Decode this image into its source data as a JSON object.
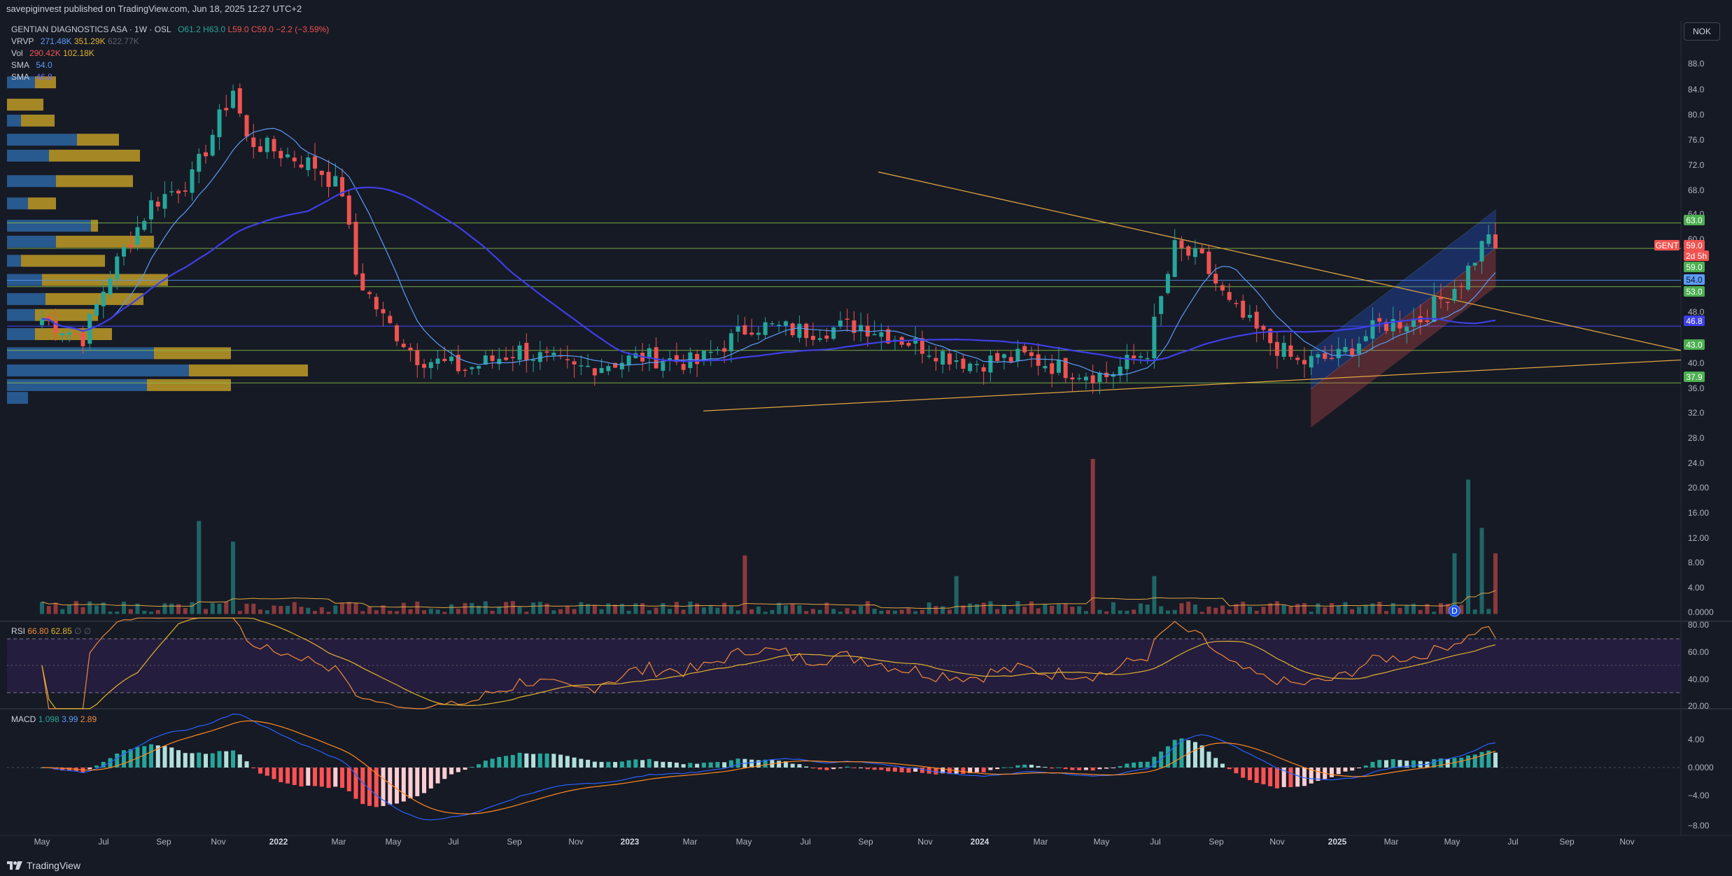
{
  "header": {
    "publish_line": "savepiginvest published on TradingView.com, Jun 18, 2025 12:27 UTC+2"
  },
  "footer": {
    "brand": "TradingView"
  },
  "currency_button": "NOK",
  "legend": {
    "symbol": "GENTIAN DIAGNOSTICS ASA · 1W · OSL",
    "open": "O61.2",
    "high": "H63.0",
    "low": "L59.0",
    "close": "C59.0",
    "change": "−2.2 (−3.59%)",
    "vrvp_label": "VRVP",
    "vrvp_up": "271.48K",
    "vrvp_down": "351.29K",
    "vrvp_total": "622.77K",
    "vol_label": "Vol",
    "vol_val": "290.42K",
    "vol_ma": "102.18K",
    "sma1_label": "SMA",
    "sma1_val": "54.0",
    "sma2_label": "SMA",
    "sma2_val": "46.8"
  },
  "rsi_legend": {
    "label": "RSI",
    "rsi": "66.80",
    "ma": "62.85",
    "extra1": "∅",
    "extra2": "∅"
  },
  "macd_legend": {
    "label": "MACD",
    "hist": "1.098",
    "macd": "3.99",
    "signal": "2.89"
  },
  "colors": {
    "bg": "#161a25",
    "up": "#26a69a",
    "down": "#ef5350",
    "sma_fast": "#5b9cf6",
    "sma_slow": "#3f3fe6",
    "trendline": "#e0a540",
    "level_green": "#8bc34a",
    "level_blue": "#5b9cf6",
    "rsi_line": "#ef8a3a",
    "rsi_ma": "#e0b22f",
    "macd_line": "#2962ff",
    "signal_line": "#ff8a1f",
    "vrvp_up": "#2f6fb3",
    "vrvp_down": "#c9a227"
  },
  "chart_data": {
    "type": "candlestick",
    "interval": "1W",
    "price_axis": {
      "ticks": [
        "88.0",
        "84.0",
        "80.0",
        "76.0",
        "72.0",
        "68.0",
        "64.0",
        "60.0",
        "48.0",
        "40.0",
        "36.0",
        "32.0",
        "28.0",
        "24.0",
        "20.00",
        "16.00",
        "12.00",
        "8.00",
        "4.00",
        "0.0000"
      ],
      "range": [
        0,
        92
      ]
    },
    "price_labels": [
      {
        "text": "63.0",
        "value": 63.0,
        "color": "#4caf50"
      },
      {
        "text": "GENT",
        "value": 59.0,
        "color": "#ef5350"
      },
      {
        "text": "59.0",
        "value": 59.0,
        "color": "#ef5350"
      },
      {
        "text": "2d 5h",
        "value": 59.0,
        "color": "#ef5350"
      },
      {
        "text": "59.0",
        "value": 59.0,
        "color": "#4caf50"
      },
      {
        "text": "54.0",
        "value": 54.0,
        "color": "#5b9cf6"
      },
      {
        "text": "53.0",
        "value": 53.0,
        "color": "#4caf50"
      },
      {
        "text": "46.8",
        "value": 46.8,
        "color": "#3f3fe6"
      },
      {
        "text": "43.0",
        "value": 43.0,
        "color": "#4caf50"
      },
      {
        "text": "37.9",
        "value": 37.9,
        "color": "#4caf50"
      }
    ],
    "levels": [
      63.0,
      59.0,
      54.0,
      53.0,
      46.8,
      43.0,
      37.9
    ],
    "time_axis": [
      "May",
      "Jul",
      "Sep",
      "Nov",
      "2022",
      "Mar",
      "May",
      "Jul",
      "Sep",
      "Nov",
      "2023",
      "Mar",
      "May",
      "Jul",
      "Sep",
      "Nov",
      "2024",
      "Mar",
      "May",
      "Jul",
      "Sep",
      "Nov",
      "2025",
      "Mar",
      "May",
      "Jul",
      "Sep",
      "Nov"
    ],
    "anchors": [
      {
        "t": 0,
        "p": 48
      },
      {
        "t": 6,
        "p": 45
      },
      {
        "t": 10,
        "p": 55
      },
      {
        "t": 16,
        "p": 66
      },
      {
        "t": 22,
        "p": 70
      },
      {
        "t": 28,
        "p": 84
      },
      {
        "t": 30,
        "p": 76
      },
      {
        "t": 40,
        "p": 72
      },
      {
        "t": 44,
        "p": 68
      },
      {
        "t": 46,
        "p": 55
      },
      {
        "t": 50,
        "p": 48
      },
      {
        "t": 55,
        "p": 42
      },
      {
        "t": 62,
        "p": 40
      },
      {
        "t": 70,
        "p": 43
      },
      {
        "t": 78,
        "p": 40
      },
      {
        "t": 88,
        "p": 42
      },
      {
        "t": 96,
        "p": 41
      },
      {
        "t": 104,
        "p": 47
      },
      {
        "t": 112,
        "p": 46
      },
      {
        "t": 120,
        "p": 47
      },
      {
        "t": 128,
        "p": 44
      },
      {
        "t": 136,
        "p": 41
      },
      {
        "t": 144,
        "p": 42
      },
      {
        "t": 150,
        "p": 40
      },
      {
        "t": 156,
        "p": 39
      },
      {
        "t": 162,
        "p": 43
      },
      {
        "t": 166,
        "p": 59
      },
      {
        "t": 170,
        "p": 57
      },
      {
        "t": 174,
        "p": 50
      },
      {
        "t": 178,
        "p": 46
      },
      {
        "t": 184,
        "p": 41
      },
      {
        "t": 190,
        "p": 42
      },
      {
        "t": 196,
        "p": 47
      },
      {
        "t": 202,
        "p": 48
      },
      {
        "t": 208,
        "p": 54
      },
      {
        "t": 212,
        "p": 61.2
      },
      {
        "t": 213,
        "p": 59.0
      }
    ],
    "volume_spikes": [
      {
        "t": 23,
        "v": 13.5
      },
      {
        "t": 28,
        "v": 10.5
      },
      {
        "t": 103,
        "v": 8.5
      },
      {
        "t": 134,
        "v": 5.5
      },
      {
        "t": 154,
        "v": 22.5
      },
      {
        "t": 163,
        "v": 5.5
      },
      {
        "t": 207,
        "v": 8.8
      },
      {
        "t": 209,
        "v": 19.5
      },
      {
        "t": 211,
        "v": 12.5
      },
      {
        "t": 213,
        "v": 8.8
      }
    ],
    "rsi_axis": [
      "80.00",
      "60.00",
      "40.00",
      "20.00"
    ],
    "macd_axis": [
      "4.00",
      "0.0000",
      "−4.00",
      "−8.00"
    ],
    "marker": "D"
  }
}
